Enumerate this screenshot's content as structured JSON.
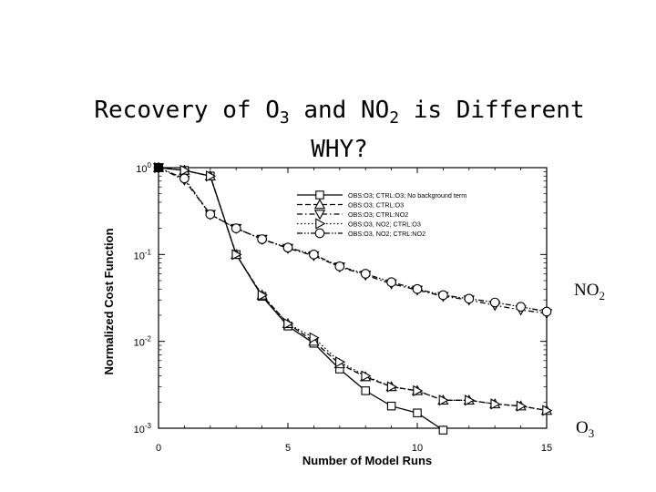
{
  "slide": {
    "title": {
      "line1_prefix": "Recovery of O",
      "line1_sub1": "3",
      "line1_mid": " and NO",
      "line1_sub2": "2",
      "line1_suffix": " is Different",
      "line2": "WHY?"
    },
    "side_labels": {
      "no2_base": "NO",
      "no2_sub": "2",
      "o3_base": "O",
      "o3_sub": "3"
    }
  },
  "chart_data": {
    "type": "line",
    "title": "",
    "xlabel": "Number of Model Runs",
    "ylabel": "Normalized Cost Function",
    "xlim": [
      0,
      15
    ],
    "ylim_log10": [
      -3,
      0
    ],
    "yscale": "log",
    "x_ticks": [
      "0",
      "5",
      "10",
      "15"
    ],
    "y_ticks": [
      {
        "base": "10",
        "exp": "0"
      },
      {
        "base": "10",
        "exp": "-1"
      },
      {
        "base": "10",
        "exp": "-2"
      },
      {
        "base": "10",
        "exp": "-3"
      }
    ],
    "legend_position": "top-right",
    "series": [
      {
        "name": "OBS:O3; CTRL:O3; No background term",
        "label": "OBS:O3; CTRL:O3; No background term",
        "marker": "square",
        "dash": "solid",
        "x": [
          0,
          1,
          2,
          3,
          4,
          5,
          6,
          7,
          8,
          9,
          10,
          11
        ],
        "y": [
          1.0,
          0.93,
          0.8,
          0.1,
          0.033,
          0.015,
          0.0095,
          0.0048,
          0.0027,
          0.0018,
          0.0015,
          0.00095
        ]
      },
      {
        "name": "OBS:O3; CTRL:O3",
        "label": "OBS:O3; CTRL:O3",
        "marker": "triangle-up",
        "dash": "dashed",
        "x": [
          0,
          1,
          2,
          3,
          4,
          5,
          6,
          7,
          8,
          9,
          10,
          11,
          12,
          13,
          14,
          15
        ],
        "y": [
          1.0,
          0.93,
          0.8,
          0.1,
          0.034,
          0.016,
          0.01,
          0.0055,
          0.0039,
          0.003,
          0.0027,
          0.0021,
          0.0021,
          0.0019,
          0.0018,
          0.0016
        ]
      },
      {
        "name": "OBS:O3; CTRL:NO2",
        "label": "OBS:O3; CTRL:NO2",
        "marker": "triangle-down",
        "dash": "dash-dot",
        "x": [
          0,
          1,
          2,
          3,
          4,
          5,
          6,
          7,
          8,
          9,
          10,
          11,
          12,
          13,
          14,
          15
        ],
        "y": [
          1.0,
          0.72,
          0.29,
          0.2,
          0.15,
          0.118,
          0.097,
          0.072,
          0.058,
          0.046,
          0.039,
          0.033,
          0.03,
          0.026,
          0.023,
          0.021
        ]
      },
      {
        "name": "OBS:O3, NO2; CTRL:O3",
        "label": "OBS:O3, NO2; CTRL:O3",
        "marker": "triangle-right",
        "dash": "dotted",
        "x": [
          0,
          1,
          2,
          3,
          4,
          5,
          6,
          7,
          8,
          9,
          10,
          11,
          12,
          13,
          14,
          15
        ],
        "y": [
          1.0,
          0.93,
          0.8,
          0.1,
          0.034,
          0.016,
          0.011,
          0.0058,
          0.004,
          0.003,
          0.0027,
          0.0021,
          0.0021,
          0.0019,
          0.0018,
          0.0016
        ]
      },
      {
        "name": "OBS:O3, NO2; CTRL:NO2",
        "label": "OBS:O3, NO2; CTRL:NO2",
        "marker": "circle",
        "dash": "dash-dot-dot",
        "x": [
          0,
          1,
          2,
          3,
          4,
          5,
          6,
          7,
          8,
          9,
          10,
          11,
          12,
          13,
          14,
          15
        ],
        "y": [
          1.0,
          0.75,
          0.29,
          0.2,
          0.15,
          0.12,
          0.1,
          0.073,
          0.06,
          0.048,
          0.04,
          0.034,
          0.031,
          0.028,
          0.025,
          0.022
        ]
      }
    ]
  }
}
